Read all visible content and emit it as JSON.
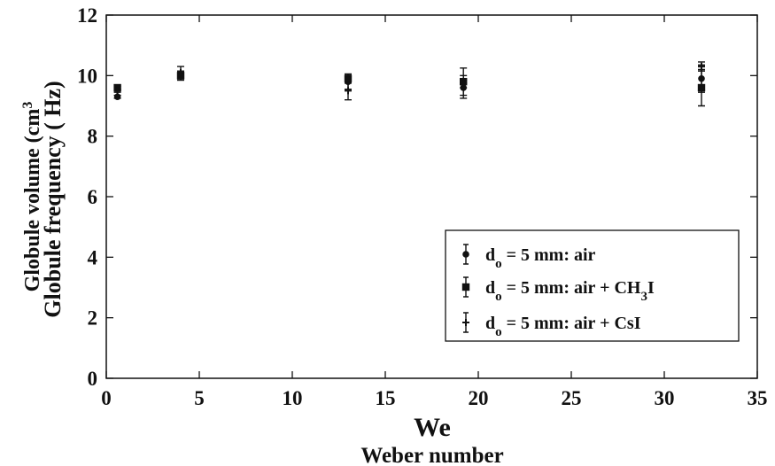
{
  "chart_data": {
    "type": "scatter",
    "xlabel": "We",
    "xlabel_secondary": "Weber number",
    "ylabel": "Globule frequency ( Hz)",
    "ylabel_ghost": "Globule volume (cm",
    "ylabel_ghost_sup": "3",
    "xlim": [
      0,
      35
    ],
    "ylim": [
      0,
      12
    ],
    "xticks": [
      0,
      5,
      10,
      15,
      20,
      25,
      30,
      35
    ],
    "yticks": [
      0,
      2,
      4,
      6,
      8,
      10,
      12
    ],
    "grid": false,
    "legend_position": "bottom-right",
    "series": [
      {
        "name": "air",
        "legend_parts": [
          "d",
          "o",
          " = 5 mm: air",
          "",
          ""
        ],
        "marker": "circle",
        "color": "#111111",
        "x": [
          0.6,
          4.0,
          13.0,
          19.2,
          32.0
        ],
        "y": [
          9.3,
          10.0,
          9.8,
          9.6,
          9.9
        ],
        "err": [
          0.05,
          0.15,
          0.25,
          0.25,
          0.45
        ]
      },
      {
        "name": "air + CH3I",
        "legend_parts": [
          "d",
          "o",
          " = 5 mm: air + CH",
          "3",
          "I"
        ],
        "marker": "square",
        "color": "#111111",
        "x": [
          0.6,
          4.0,
          13.0,
          19.2,
          32.0
        ],
        "y": [
          9.6,
          10.0,
          9.9,
          9.8,
          9.6
        ],
        "err": [
          0.05,
          0.15,
          0.15,
          0.2,
          0.6
        ]
      },
      {
        "name": "air + CsI",
        "legend_parts": [
          "d",
          "o",
          " = 5 mm: air + CsI",
          "",
          ""
        ],
        "marker": "plus",
        "color": "#111111",
        "x": [
          0.6,
          4.0,
          13.0,
          19.2,
          32.0
        ],
        "y": [
          9.5,
          10.1,
          9.5,
          9.75,
          10.3
        ],
        "err": [
          0.05,
          0.2,
          0.3,
          0.5,
          0.15
        ]
      }
    ]
  }
}
